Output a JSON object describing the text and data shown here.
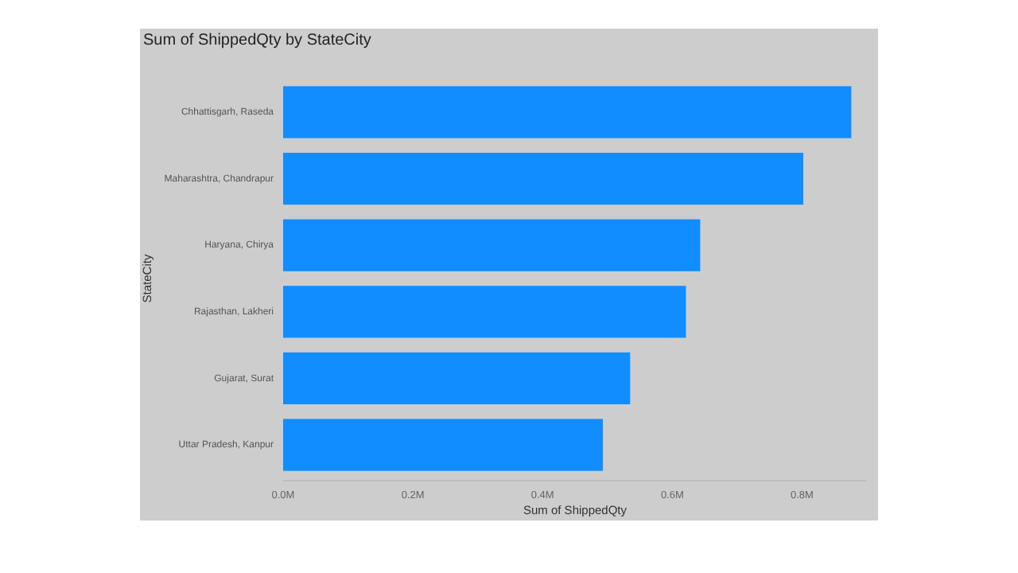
{
  "chart_data": {
    "type": "bar",
    "orientation": "horizontal",
    "title": "Sum of ShippedQty by StateCity",
    "xlabel": "Sum of ShippedQty",
    "ylabel": "StateCity",
    "categories": [
      "Chhattisgarh, Raseda",
      "Maharashtra, Chandrapur",
      "Haryana, Chirya",
      "Rajasthan, Lakheri",
      "Gujarat, Surat",
      "Uttar Pradesh, Kanpur"
    ],
    "values": [
      0.876,
      0.802,
      0.643,
      0.621,
      0.535,
      0.493
    ],
    "color": "#118dff",
    "xlim": [
      0,
      0.9
    ],
    "xticks": [
      {
        "value": 0,
        "label": "0.0M"
      },
      {
        "value": 0.2,
        "label": "0.2M"
      },
      {
        "value": 0.4,
        "label": "0.4M"
      },
      {
        "value": 0.6,
        "label": "0.6M"
      },
      {
        "value": 0.8,
        "label": "0.8M"
      }
    ],
    "grid": false
  }
}
